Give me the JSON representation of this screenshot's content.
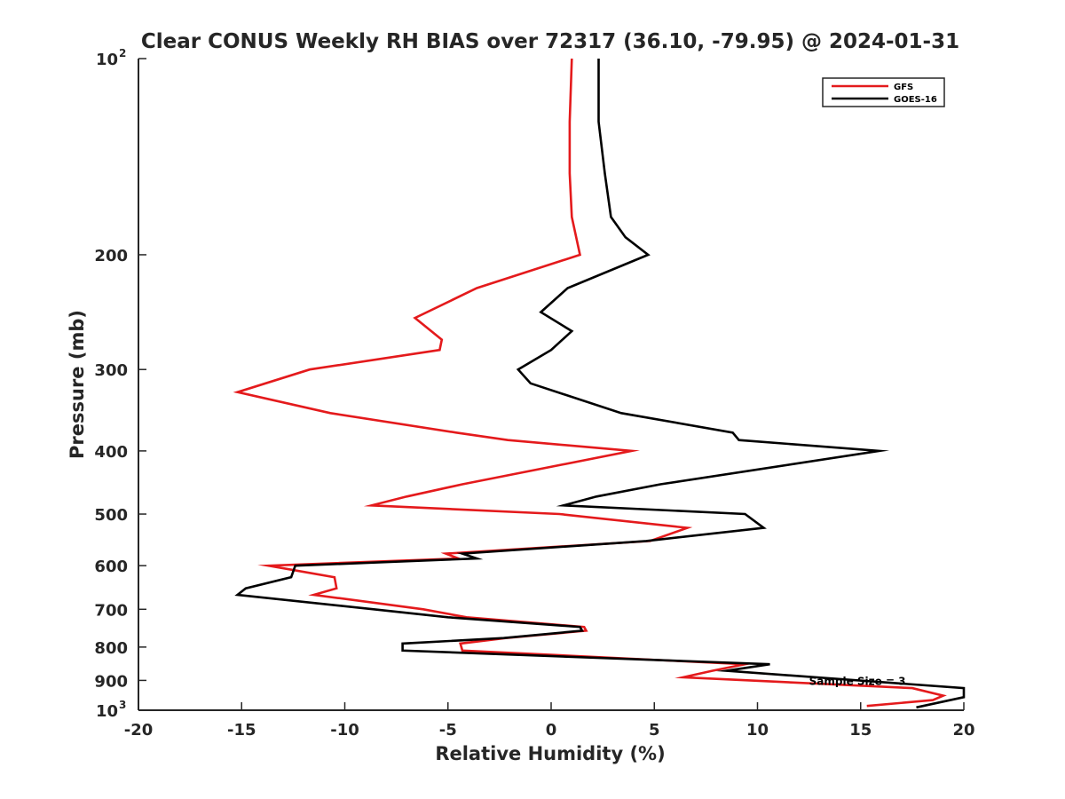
{
  "chart_data": {
    "type": "line",
    "title": "Clear CONUS Weekly RH BIAS over 72317 (36.10, -79.95) @ 2024-01-31",
    "xlabel": "Relative Humidity (%)",
    "ylabel": "Pressure (mb)",
    "xlim": [
      -20,
      20
    ],
    "ylim": [
      100,
      1000
    ],
    "yscale": "log",
    "y_reversed": true,
    "xticks": [
      -20,
      -15,
      -10,
      -5,
      0,
      5,
      10,
      15,
      20
    ],
    "xtick_labels": [
      "-20",
      "-15",
      "-10",
      "-5",
      "0",
      "5",
      "10",
      "15",
      "20"
    ],
    "yticks": [
      100,
      200,
      300,
      400,
      500,
      600,
      700,
      800,
      900,
      1000
    ],
    "ytick_labels": [
      {
        "base": "10",
        "sup": "2"
      },
      {
        "base": "200",
        "sup": ""
      },
      {
        "base": "300",
        "sup": ""
      },
      {
        "base": "400",
        "sup": ""
      },
      {
        "base": "500",
        "sup": ""
      },
      {
        "base": "600",
        "sup": ""
      },
      {
        "base": "700",
        "sup": ""
      },
      {
        "base": "800",
        "sup": ""
      },
      {
        "base": "900",
        "sup": ""
      },
      {
        "base": "10",
        "sup": "3"
      }
    ],
    "grid": false,
    "legend_position": "top-right",
    "annotation": "Sample Size = 3",
    "annotation_at": {
      "x": 12.5,
      "p": 900
    },
    "series": [
      {
        "name": "GFS",
        "color": "#e41a1c",
        "points": [
          [
            1.0,
            100
          ],
          [
            0.9,
            125
          ],
          [
            0.9,
            150
          ],
          [
            1.0,
            175
          ],
          [
            1.4,
            200
          ],
          [
            -3.6,
            225
          ],
          [
            -6.6,
            250
          ],
          [
            -5.3,
            270
          ],
          [
            -5.4,
            280
          ],
          [
            -11.7,
            300
          ],
          [
            -15.2,
            325
          ],
          [
            -10.7,
            350
          ],
          [
            -4.6,
            375
          ],
          [
            -2.1,
            385
          ],
          [
            3.9,
            400
          ],
          [
            -4.3,
            450
          ],
          [
            -7.0,
            470
          ],
          [
            -8.7,
            485
          ],
          [
            0.4,
            500
          ],
          [
            6.6,
            525
          ],
          [
            4.8,
            550
          ],
          [
            -5.1,
            575
          ],
          [
            -4.5,
            585
          ],
          [
            -13.7,
            600
          ],
          [
            -10.5,
            625
          ],
          [
            -10.4,
            650
          ],
          [
            -11.5,
            665
          ],
          [
            -6.2,
            700
          ],
          [
            -4.1,
            720
          ],
          [
            1.6,
            745
          ],
          [
            1.7,
            755
          ],
          [
            -2.2,
            775
          ],
          [
            -4.4,
            790
          ],
          [
            -4.3,
            810
          ],
          [
            9.4,
            850
          ],
          [
            7.8,
            870
          ],
          [
            6.4,
            890
          ],
          [
            17.5,
            925
          ],
          [
            19.0,
            950
          ],
          [
            18.5,
            965
          ],
          [
            15.3,
            985
          ]
        ]
      },
      {
        "name": "GOES-16",
        "color": "#000000",
        "points": [
          [
            2.3,
            100
          ],
          [
            2.3,
            125
          ],
          [
            2.6,
            150
          ],
          [
            2.9,
            175
          ],
          [
            3.6,
            188
          ],
          [
            4.7,
            200
          ],
          [
            0.8,
            225
          ],
          [
            -0.5,
            245
          ],
          [
            1.0,
            262
          ],
          [
            0.0,
            280
          ],
          [
            -1.6,
            300
          ],
          [
            -1.0,
            315
          ],
          [
            3.4,
            350
          ],
          [
            8.8,
            375
          ],
          [
            9.1,
            385
          ],
          [
            15.9,
            400
          ],
          [
            5.3,
            450
          ],
          [
            2.2,
            470
          ],
          [
            0.6,
            485
          ],
          [
            9.4,
            500
          ],
          [
            10.3,
            525
          ],
          [
            4.6,
            550
          ],
          [
            -4.3,
            575
          ],
          [
            -3.6,
            585
          ],
          [
            -12.4,
            600
          ],
          [
            -12.6,
            625
          ],
          [
            -14.8,
            650
          ],
          [
            -15.2,
            665
          ],
          [
            -8.6,
            700
          ],
          [
            -5.0,
            720
          ],
          [
            1.4,
            745
          ],
          [
            1.5,
            755
          ],
          [
            -2.3,
            775
          ],
          [
            -7.2,
            790
          ],
          [
            -7.2,
            810
          ],
          [
            10.6,
            850
          ],
          [
            8.5,
            870
          ],
          [
            20.0,
            925
          ],
          [
            20.0,
            955
          ],
          [
            17.7,
            990
          ]
        ]
      }
    ]
  }
}
